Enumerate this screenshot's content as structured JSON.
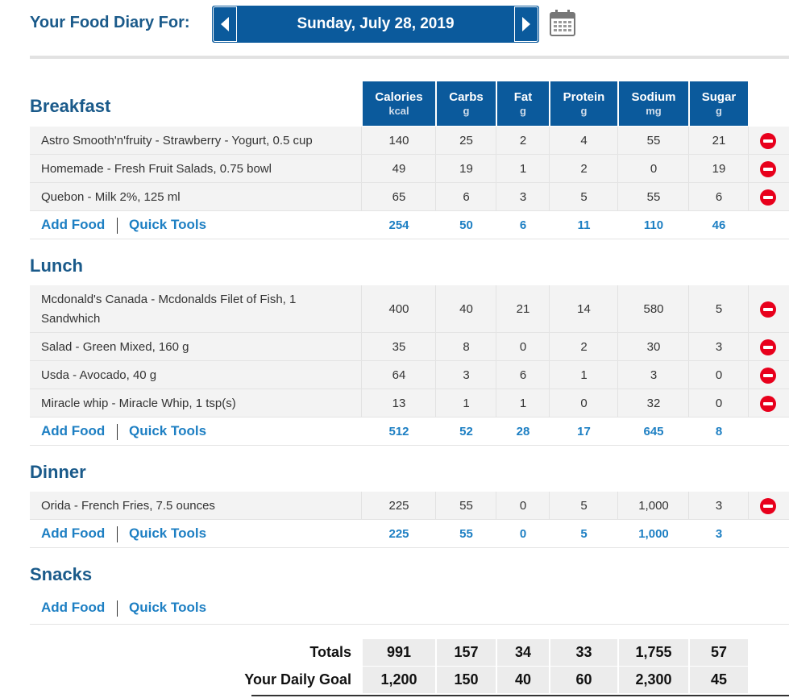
{
  "header": {
    "title": "Your Food Diary For:",
    "date": "Sunday, July 28, 2019",
    "prev_icon": "chevron-left-icon",
    "next_icon": "chevron-right-icon",
    "calendar_icon": "calendar-icon"
  },
  "columns": [
    {
      "name": "Calories",
      "unit": "kcal"
    },
    {
      "name": "Carbs",
      "unit": "g"
    },
    {
      "name": "Fat",
      "unit": "g"
    },
    {
      "name": "Protein",
      "unit": "g"
    },
    {
      "name": "Sodium",
      "unit": "mg"
    },
    {
      "name": "Sugar",
      "unit": "g"
    }
  ],
  "links": {
    "add_food": "Add Food",
    "quick_tools": "Quick Tools"
  },
  "meals": {
    "breakfast": {
      "title": "Breakfast",
      "foods": [
        {
          "name": "Astro Smooth'n'fruity - Strawberry - Yogurt, 0.5 cup",
          "values": [
            "140",
            "25",
            "2",
            "4",
            "55",
            "21"
          ]
        },
        {
          "name": "Homemade - Fresh Fruit Salads, 0.75 bowl",
          "values": [
            "49",
            "19",
            "1",
            "2",
            "0",
            "19"
          ]
        },
        {
          "name": "Quebon - Milk 2%, 125 ml",
          "values": [
            "65",
            "6",
            "3",
            "5",
            "55",
            "6"
          ]
        }
      ],
      "totals": [
        "254",
        "50",
        "6",
        "11",
        "110",
        "46"
      ]
    },
    "lunch": {
      "title": "Lunch",
      "foods": [
        {
          "name": "Mcdonald's Canada - Mcdonalds Filet of Fish, 1 Sandwhich",
          "values": [
            "400",
            "40",
            "21",
            "14",
            "580",
            "5"
          ]
        },
        {
          "name": "Salad - Green Mixed, 160 g",
          "values": [
            "35",
            "8",
            "0",
            "2",
            "30",
            "3"
          ]
        },
        {
          "name": "Usda - Avocado, 40 g",
          "values": [
            "64",
            "3",
            "6",
            "1",
            "3",
            "0"
          ]
        },
        {
          "name": "Miracle whip - Miracle Whip, 1 tsp(s)",
          "values": [
            "13",
            "1",
            "1",
            "0",
            "32",
            "0"
          ]
        }
      ],
      "totals": [
        "512",
        "52",
        "28",
        "17",
        "645",
        "8"
      ]
    },
    "dinner": {
      "title": "Dinner",
      "foods": [
        {
          "name": "Orida - French Fries, 7.5 ounces",
          "values": [
            "225",
            "55",
            "0",
            "5",
            "1,000",
            "3"
          ]
        }
      ],
      "totals": [
        "225",
        "55",
        "0",
        "5",
        "1,000",
        "3"
      ]
    },
    "snacks": {
      "title": "Snacks",
      "foods": [],
      "totals": []
    }
  },
  "summary": {
    "totals_label": "Totals",
    "totals": [
      "991",
      "157",
      "34",
      "33",
      "1,755",
      "57"
    ],
    "goal_label": "Your Daily Goal",
    "goal": [
      "1,200",
      "150",
      "40",
      "60",
      "2,300",
      "45"
    ]
  },
  "colors": {
    "primary_blue": "#0b5a9c",
    "title_blue": "#1a5a8a",
    "link_blue": "#1d7fc3",
    "remove_red": "#e8001c",
    "row_gray": "#f3f3f3"
  }
}
